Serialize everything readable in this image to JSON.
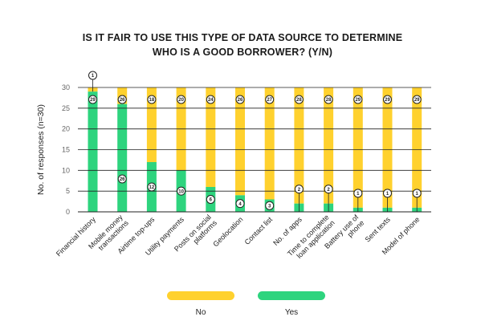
{
  "chart_data": {
    "type": "bar",
    "stacked": true,
    "title_lines": [
      "IS IT FAIR TO USE THIS TYPE OF DATA SOURCE TO DETERMINE",
      "WHO IS A GOOD BORROWER? (Y/N)"
    ],
    "ylabel": "No. of responses (n=30)",
    "ylim": [
      0,
      30
    ],
    "yticks": [
      0,
      5,
      10,
      15,
      20,
      25,
      30
    ],
    "categories": [
      [
        "Financial history"
      ],
      [
        "Mobile money",
        "transactions"
      ],
      [
        "Airtime top-ups"
      ],
      [
        "Utility payments"
      ],
      [
        "Posts on social",
        "platforms"
      ],
      [
        "Geolocation"
      ],
      [
        "Contact list"
      ],
      [
        "No. of apps"
      ],
      [
        "Time to complete",
        "loan application"
      ],
      [
        "Battery use of",
        "phone"
      ],
      [
        "Sent texts"
      ],
      [
        "Model of phone"
      ]
    ],
    "series": [
      {
        "name": "Yes",
        "color": "#2ed47e",
        "values": [
          29,
          26,
          12,
          10,
          6,
          4,
          3,
          2,
          2,
          1,
          1,
          1
        ]
      },
      {
        "name": "No",
        "color": "#ffd12e",
        "values": [
          1,
          4,
          18,
          20,
          24,
          26,
          27,
          28,
          28,
          29,
          29,
          29
        ]
      }
    ],
    "legend": [
      "No",
      "Yes"
    ],
    "legend_position": "bottom"
  },
  "colors": {
    "yes": "#2ed47e",
    "no": "#ffd12e",
    "grid": "#222222"
  }
}
